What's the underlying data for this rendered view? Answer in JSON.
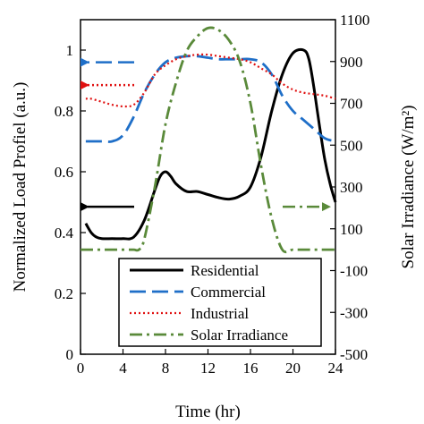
{
  "chart_data": {
    "type": "line",
    "xlabel": "Time (hr)",
    "ylabel_left": "Normalized Load Profiel (a.u.)",
    "ylabel_right": "Solar Irradiance (W/m²)",
    "xlim": [
      0,
      24
    ],
    "ylim_left": [
      0,
      1.1
    ],
    "ylim_right": [
      -500,
      1100
    ],
    "x_ticks": [
      "0",
      "4",
      "8",
      "12",
      "16",
      "20",
      "24"
    ],
    "y_left_ticks": [
      "0",
      "0.2",
      "0.4",
      "0.6",
      "0.8",
      "1"
    ],
    "y_right_ticks": [
      "-500",
      "-300",
      "-100",
      "100",
      "300",
      "500",
      "700",
      "900",
      "1100"
    ],
    "grid": false,
    "legend_position": "bottom-center",
    "series": [
      {
        "name": "Residential",
        "axis": "left",
        "color": "#000000",
        "style": "solid",
        "points": [
          [
            0.5,
            0.43
          ],
          [
            1,
            0.4
          ],
          [
            1.5,
            0.385
          ],
          [
            2,
            0.38
          ],
          [
            3,
            0.38
          ],
          [
            4,
            0.38
          ],
          [
            5,
            0.385
          ],
          [
            6,
            0.44
          ],
          [
            7,
            0.54
          ],
          [
            7.5,
            0.585
          ],
          [
            8,
            0.6
          ],
          [
            8.5,
            0.585
          ],
          [
            9,
            0.56
          ],
          [
            10,
            0.535
          ],
          [
            11,
            0.535
          ],
          [
            12,
            0.525
          ],
          [
            13,
            0.515
          ],
          [
            14,
            0.51
          ],
          [
            15,
            0.52
          ],
          [
            16,
            0.55
          ],
          [
            17,
            0.65
          ],
          [
            18,
            0.8
          ],
          [
            19,
            0.92
          ],
          [
            20,
            0.99
          ],
          [
            21,
            1.0
          ],
          [
            21.5,
            0.97
          ],
          [
            22,
            0.87
          ],
          [
            22.5,
            0.75
          ],
          [
            23,
            0.64
          ],
          [
            23.5,
            0.56
          ],
          [
            24,
            0.5
          ]
        ]
      },
      {
        "name": "Commercial",
        "axis": "left",
        "color": "#1f6fc8",
        "style": "dashed",
        "points": [
          [
            0.5,
            0.7
          ],
          [
            1,
            0.7
          ],
          [
            2,
            0.7
          ],
          [
            3,
            0.7
          ],
          [
            4,
            0.72
          ],
          [
            5,
            0.78
          ],
          [
            6,
            0.86
          ],
          [
            7,
            0.92
          ],
          [
            8,
            0.96
          ],
          [
            9,
            0.975
          ],
          [
            10,
            0.98
          ],
          [
            11,
            0.98
          ],
          [
            12,
            0.975
          ],
          [
            13,
            0.97
          ],
          [
            14,
            0.97
          ],
          [
            15,
            0.97
          ],
          [
            16,
            0.97
          ],
          [
            17,
            0.96
          ],
          [
            18,
            0.92
          ],
          [
            19,
            0.85
          ],
          [
            20,
            0.8
          ],
          [
            21,
            0.77
          ],
          [
            22,
            0.74
          ],
          [
            23,
            0.71
          ],
          [
            24,
            0.7
          ]
        ]
      },
      {
        "name": "Industrial",
        "axis": "left",
        "color": "#e01010",
        "style": "dotted",
        "points": [
          [
            0.5,
            0.84
          ],
          [
            1,
            0.84
          ],
          [
            2,
            0.83
          ],
          [
            3,
            0.82
          ],
          [
            4,
            0.815
          ],
          [
            5,
            0.82
          ],
          [
            6,
            0.86
          ],
          [
            7,
            0.92
          ],
          [
            8,
            0.95
          ],
          [
            9,
            0.97
          ],
          [
            10,
            0.98
          ],
          [
            11,
            0.985
          ],
          [
            12,
            0.985
          ],
          [
            13,
            0.98
          ],
          [
            14,
            0.975
          ],
          [
            15,
            0.97
          ],
          [
            16,
            0.96
          ],
          [
            17,
            0.94
          ],
          [
            18,
            0.92
          ],
          [
            19,
            0.89
          ],
          [
            20,
            0.87
          ],
          [
            21,
            0.86
          ],
          [
            22,
            0.855
          ],
          [
            23,
            0.85
          ],
          [
            24,
            0.84
          ]
        ]
      },
      {
        "name": "Solar Irradiance",
        "axis": "right",
        "color": "#5a8a3a",
        "style": "dashdot",
        "points": [
          [
            0,
            0
          ],
          [
            1,
            0
          ],
          [
            2,
            0
          ],
          [
            3,
            0
          ],
          [
            4,
            0
          ],
          [
            5,
            0
          ],
          [
            5.5,
            0
          ],
          [
            6,
            50
          ],
          [
            7,
            300
          ],
          [
            8,
            600
          ],
          [
            9,
            800
          ],
          [
            10,
            950
          ],
          [
            11,
            1020
          ],
          [
            12,
            1060
          ],
          [
            13,
            1050
          ],
          [
            14,
            1000
          ],
          [
            15,
            900
          ],
          [
            16,
            700
          ],
          [
            17,
            400
          ],
          [
            18,
            150
          ],
          [
            19,
            0
          ],
          [
            20,
            0
          ],
          [
            21,
            0
          ],
          [
            22,
            0
          ],
          [
            23,
            0
          ],
          [
            24,
            0
          ]
        ]
      }
    ],
    "axis_arrows": [
      {
        "series": "Residential",
        "direction": "left",
        "y_axis": "left"
      },
      {
        "series": "Commercial",
        "direction": "left",
        "y_axis": "left"
      },
      {
        "series": "Industrial",
        "direction": "left",
        "y_axis": "left"
      },
      {
        "series": "Solar Irradiance",
        "direction": "right",
        "y_axis": "right"
      }
    ]
  }
}
